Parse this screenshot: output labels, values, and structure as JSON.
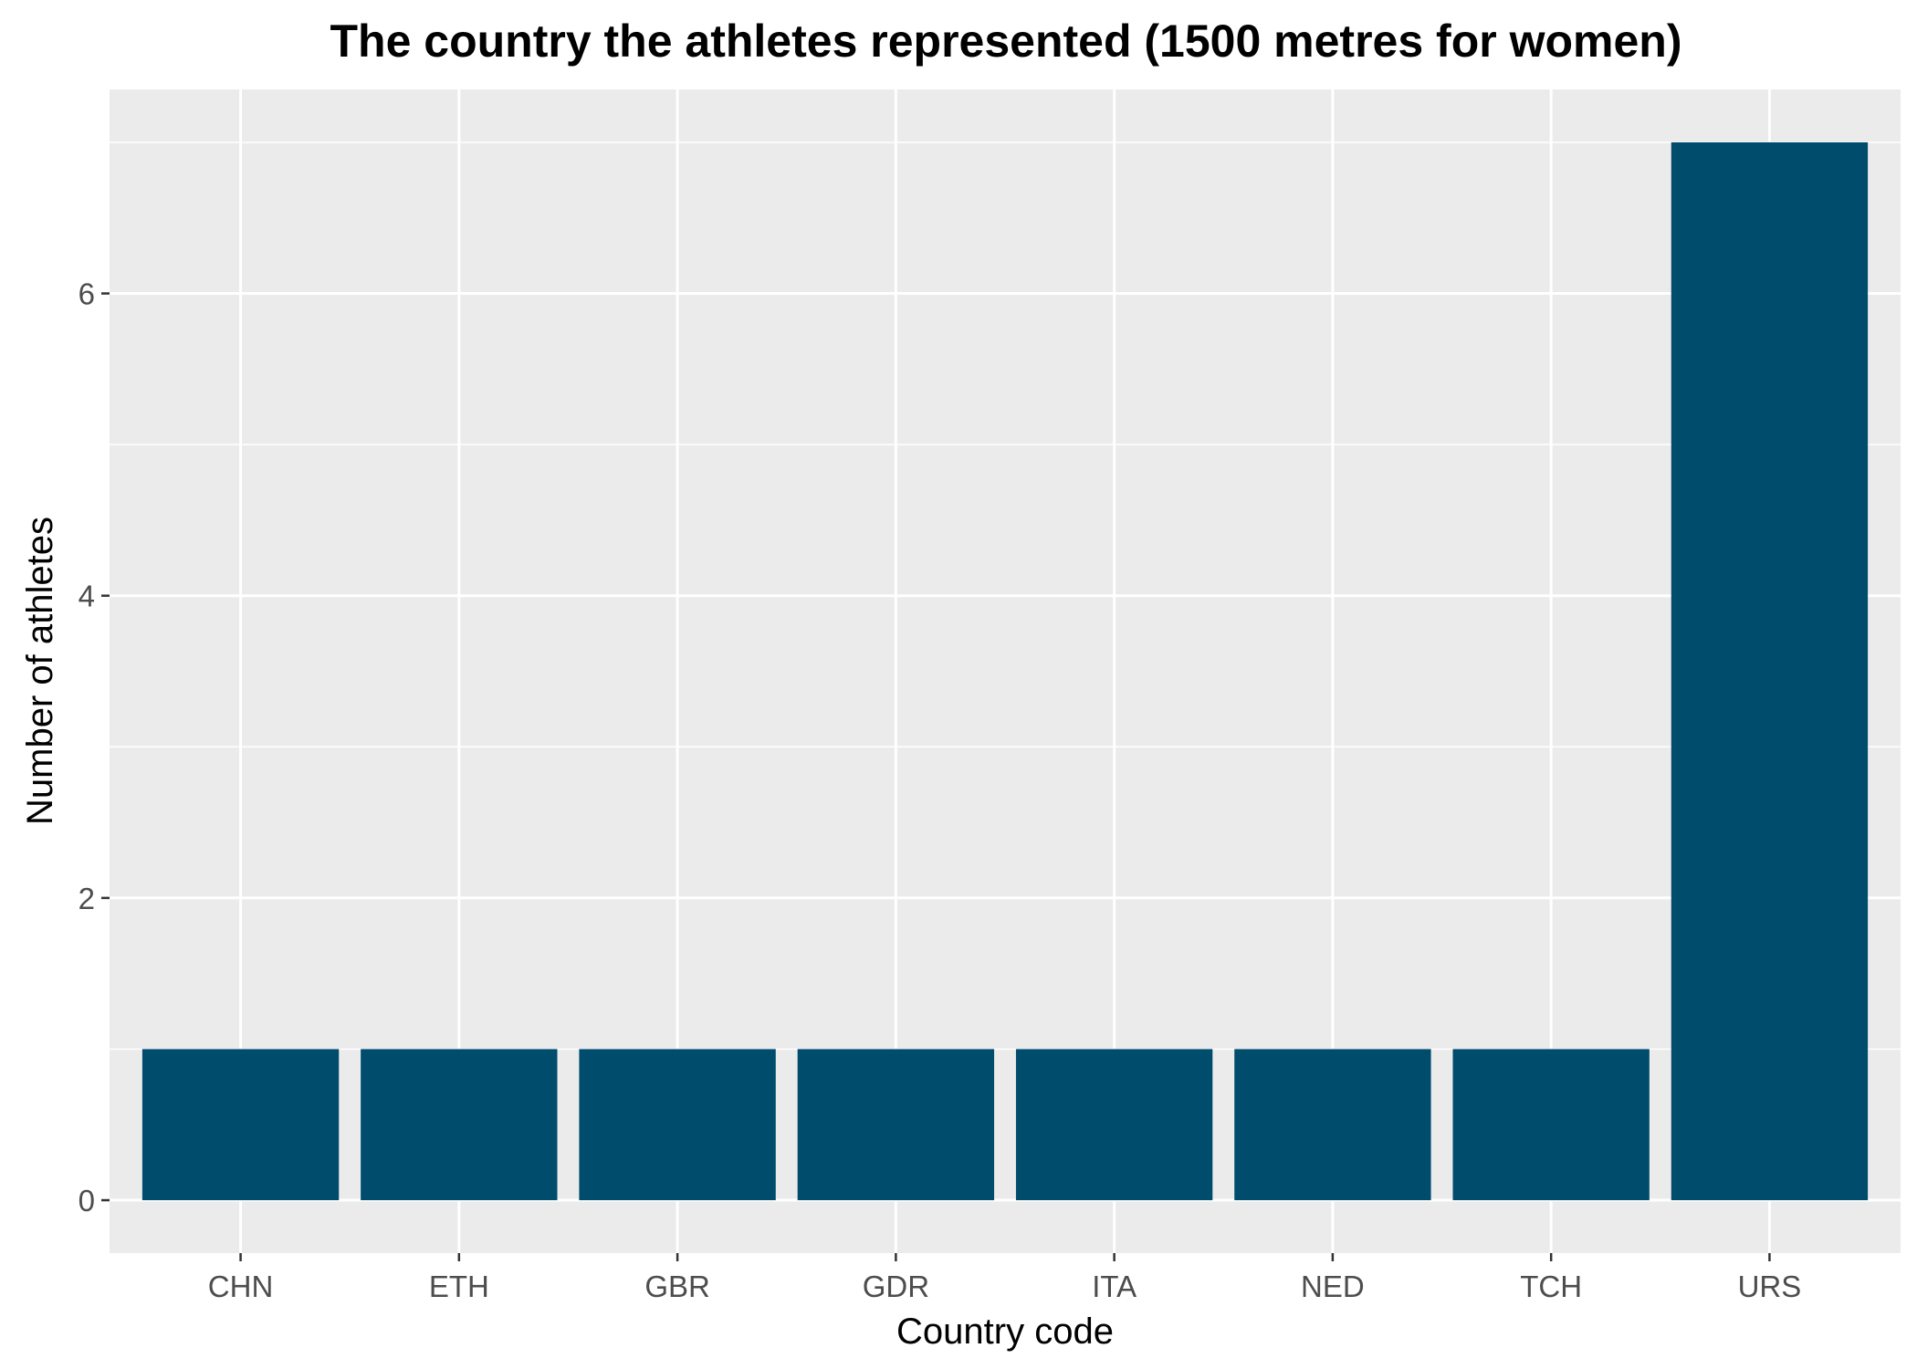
{
  "chart_data": {
    "type": "bar",
    "title": "The country the athletes represented (1500 metres for women)",
    "xlabel": "Country code",
    "ylabel": "Number of athletes",
    "categories": [
      "CHN",
      "ETH",
      "GBR",
      "GDR",
      "ITA",
      "NED",
      "TCH",
      "URS"
    ],
    "values": [
      1,
      1,
      1,
      1,
      1,
      1,
      1,
      7
    ],
    "ylim": [
      -0.35,
      7.35
    ],
    "yticks": [
      0,
      2,
      4,
      6
    ],
    "grid": true,
    "legend": "none",
    "bar_color": "#004c6d",
    "panel_color": "#ebebeb"
  }
}
